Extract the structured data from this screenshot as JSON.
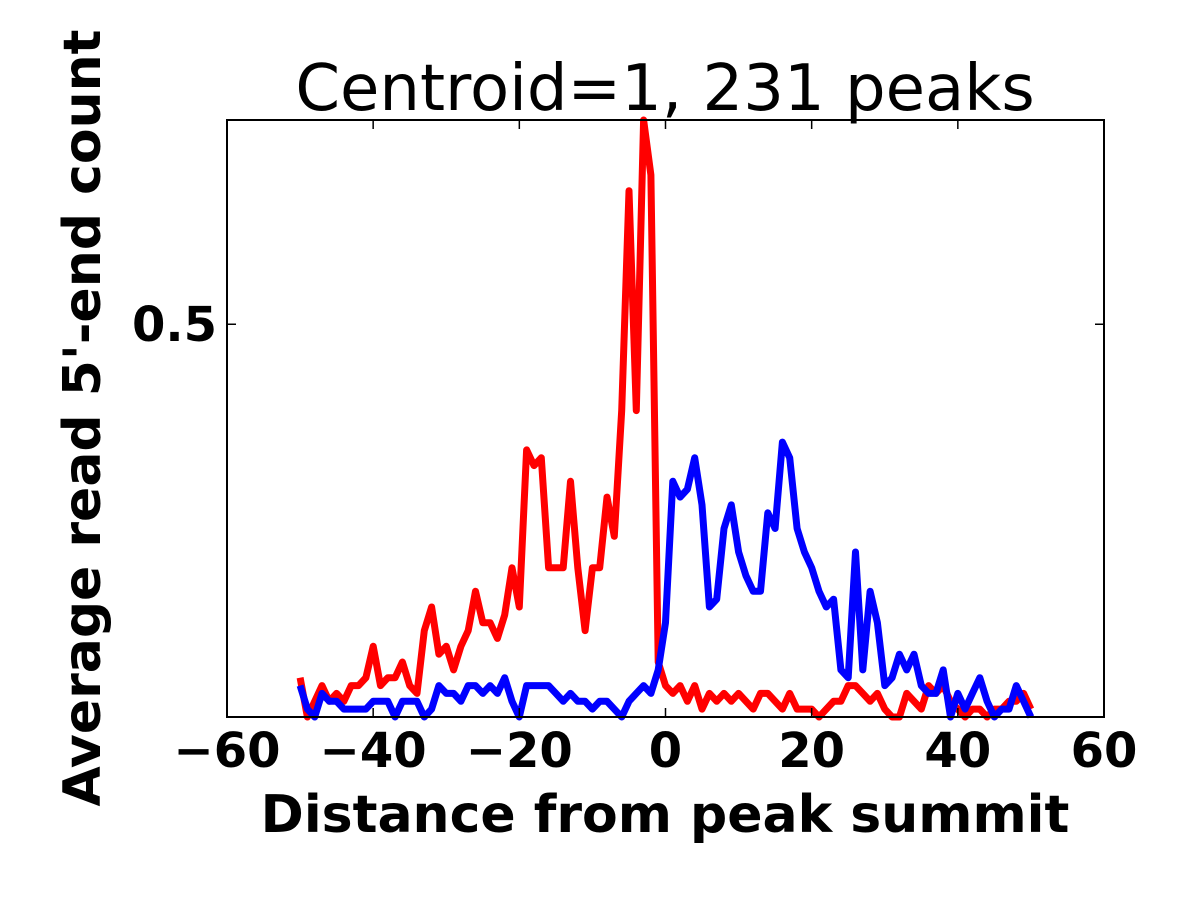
{
  "chart_data": {
    "type": "line",
    "title": "Centroid=1, 231 peaks",
    "xlabel": "Distance from peak summit",
    "ylabel": "Average read 5'-end count",
    "xlim": [
      -60,
      60
    ],
    "ylim": [
      0,
      0.76
    ],
    "xticks": [
      -60,
      -40,
      -20,
      0,
      20,
      40,
      60
    ],
    "xtick_labels": [
      "−60",
      "−40",
      "−20",
      "0",
      "20",
      "40",
      "60"
    ],
    "yticks": [
      0.5
    ],
    "ytick_labels": [
      "0.5"
    ],
    "grid": false,
    "legend": "none",
    "series": [
      {
        "color": "#ff0000",
        "x": [
          -50,
          -49,
          -48,
          -47,
          -46,
          -45,
          -44,
          -43,
          -42,
          -41,
          -40,
          -39,
          -38,
          -37,
          -36,
          -35,
          -34,
          -33,
          -32,
          -31,
          -30,
          -29,
          -28,
          -27,
          -26,
          -25,
          -24,
          -23,
          -22,
          -21,
          -20,
          -19,
          -18,
          -17,
          -16,
          -15,
          -14,
          -13,
          -12,
          -11,
          -10,
          -9,
          -8,
          -7,
          -6,
          -5,
          -4,
          -3,
          -2,
          -1,
          0,
          1,
          2,
          3,
          4,
          5,
          6,
          7,
          8,
          9,
          10,
          11,
          12,
          13,
          14,
          15,
          16,
          17,
          18,
          19,
          20,
          21,
          22,
          23,
          24,
          25,
          26,
          27,
          28,
          29,
          30,
          31,
          32,
          33,
          34,
          35,
          36,
          37,
          38,
          39,
          40,
          41,
          42,
          43,
          44,
          45,
          46,
          47,
          48,
          49,
          50
        ],
        "y": [
          0.05,
          0.0,
          0.02,
          0.04,
          0.02,
          0.03,
          0.02,
          0.04,
          0.04,
          0.05,
          0.09,
          0.04,
          0.05,
          0.05,
          0.07,
          0.04,
          0.03,
          0.11,
          0.14,
          0.08,
          0.09,
          0.06,
          0.09,
          0.11,
          0.16,
          0.12,
          0.12,
          0.1,
          0.13,
          0.19,
          0.14,
          0.34,
          0.32,
          0.33,
          0.19,
          0.19,
          0.19,
          0.3,
          0.19,
          0.11,
          0.19,
          0.19,
          0.28,
          0.23,
          0.39,
          0.67,
          0.39,
          0.76,
          0.69,
          0.07,
          0.04,
          0.03,
          0.04,
          0.02,
          0.04,
          0.01,
          0.03,
          0.02,
          0.03,
          0.02,
          0.03,
          0.02,
          0.01,
          0.03,
          0.03,
          0.02,
          0.01,
          0.03,
          0.01,
          0.01,
          0.01,
          0.0,
          0.01,
          0.02,
          0.02,
          0.04,
          0.04,
          0.03,
          0.02,
          0.03,
          0.01,
          0.0,
          0.0,
          0.03,
          0.02,
          0.01,
          0.04,
          0.03,
          0.04,
          0.02,
          0.01,
          0.0,
          0.01,
          0.01,
          0.0,
          0.01,
          0.01,
          0.02,
          0.02,
          0.03,
          0.01
        ]
      },
      {
        "color": "#0000ff",
        "x": [
          -50,
          -49,
          -48,
          -47,
          -46,
          -45,
          -44,
          -43,
          -42,
          -41,
          -40,
          -39,
          -38,
          -37,
          -36,
          -35,
          -34,
          -33,
          -32,
          -31,
          -30,
          -29,
          -28,
          -27,
          -26,
          -25,
          -24,
          -23,
          -22,
          -21,
          -20,
          -19,
          -18,
          -17,
          -16,
          -15,
          -14,
          -13,
          -12,
          -11,
          -10,
          -9,
          -8,
          -7,
          -6,
          -5,
          -4,
          -3,
          -2,
          -1,
          0,
          1,
          2,
          3,
          4,
          5,
          6,
          7,
          8,
          9,
          10,
          11,
          12,
          13,
          14,
          15,
          16,
          17,
          18,
          19,
          20,
          21,
          22,
          23,
          24,
          25,
          26,
          27,
          28,
          29,
          30,
          31,
          32,
          33,
          34,
          35,
          36,
          37,
          38,
          39,
          40,
          41,
          42,
          43,
          44,
          45,
          46,
          47,
          48,
          49,
          50
        ],
        "y": [
          0.04,
          0.01,
          0.0,
          0.03,
          0.02,
          0.02,
          0.01,
          0.01,
          0.01,
          0.01,
          0.02,
          0.02,
          0.02,
          0.0,
          0.02,
          0.02,
          0.02,
          0.0,
          0.01,
          0.04,
          0.03,
          0.03,
          0.02,
          0.04,
          0.04,
          0.03,
          0.04,
          0.03,
          0.05,
          0.02,
          0.0,
          0.04,
          0.04,
          0.04,
          0.04,
          0.03,
          0.02,
          0.03,
          0.02,
          0.02,
          0.01,
          0.02,
          0.02,
          0.01,
          0.0,
          0.02,
          0.03,
          0.04,
          0.03,
          0.06,
          0.12,
          0.3,
          0.28,
          0.29,
          0.33,
          0.27,
          0.14,
          0.15,
          0.24,
          0.27,
          0.21,
          0.18,
          0.16,
          0.16,
          0.26,
          0.24,
          0.35,
          0.33,
          0.24,
          0.21,
          0.19,
          0.16,
          0.14,
          0.15,
          0.06,
          0.05,
          0.21,
          0.06,
          0.16,
          0.12,
          0.04,
          0.05,
          0.08,
          0.06,
          0.08,
          0.04,
          0.03,
          0.03,
          0.06,
          0.0,
          0.03,
          0.01,
          0.03,
          0.05,
          0.02,
          0.0,
          0.01,
          0.01,
          0.04,
          0.02,
          0.0
        ]
      }
    ]
  }
}
